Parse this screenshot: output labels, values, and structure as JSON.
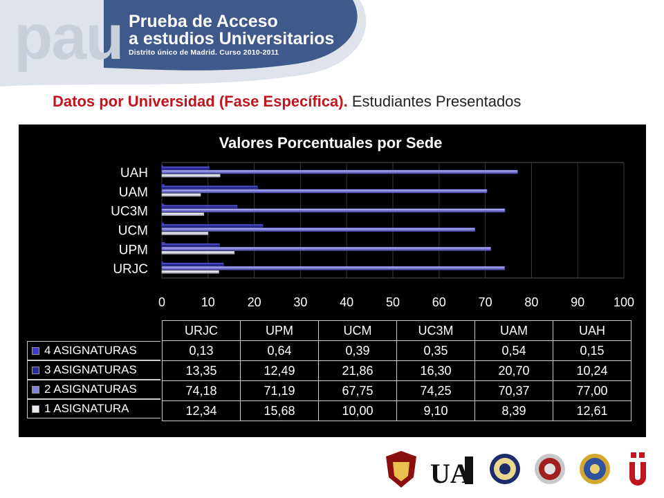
{
  "header": {
    "logo_text": "pau",
    "line1": "Prueba de Acceso",
    "line2": "a estudios Universitarios",
    "line3": "Distrito único de Madrid. Curso 2010-2011"
  },
  "slide_title": {
    "highlight": "Datos por Universidad (Fase Específica).",
    "rest": " Estudiantes Presentados"
  },
  "colors": {
    "accent_red": "#c0141e",
    "banner_blue": "#3d5a8a",
    "series": [
      "#3a3aaa",
      "#2d2daa",
      "#8a8ae0",
      "#e8e8f0"
    ]
  },
  "chart_data": {
    "type": "bar",
    "orientation": "horizontal",
    "title": "Valores Porcentuales por Sede",
    "categories": [
      "URJC",
      "UPM",
      "UCM",
      "UC3M",
      "UAM",
      "UAH"
    ],
    "xlim": [
      0,
      100
    ],
    "xticks": [
      "0",
      "10",
      "20",
      "30",
      "40",
      "50",
      "60",
      "70",
      "80",
      "90",
      "100"
    ],
    "grid": true,
    "series": [
      {
        "name": "4 ASIGNATURAS",
        "values": [
          0.13,
          0.64,
          0.39,
          0.35,
          0.54,
          0.15
        ],
        "labels": [
          "0,13",
          "0,64",
          "0,39",
          "0,35",
          "0,54",
          "0,15"
        ]
      },
      {
        "name": "3 ASIGNATURAS",
        "values": [
          13.35,
          12.49,
          21.86,
          16.3,
          20.7,
          10.24
        ],
        "labels": [
          "13,35",
          "12,49",
          "21,86",
          "16,30",
          "20,70",
          "10,24"
        ]
      },
      {
        "name": "2 ASIGNATURAS",
        "values": [
          74.18,
          71.19,
          67.75,
          74.25,
          70.37,
          77.0
        ],
        "labels": [
          "74,18",
          "71,19",
          "67,75",
          "74,25",
          "70,37",
          "77,00"
        ]
      },
      {
        "name": "1 ASIGNATURA",
        "values": [
          12.34,
          15.68,
          10.0,
          9.1,
          8.39,
          12.61
        ],
        "labels": [
          "12,34",
          "15,68",
          "10,00",
          "9,10",
          "8,39",
          "12,61"
        ]
      }
    ]
  },
  "footer_logos": [
    "urjc-crest",
    "uam-logo",
    "uc3m-seal",
    "ucm-seal",
    "upm-seal",
    "uah-logo"
  ]
}
